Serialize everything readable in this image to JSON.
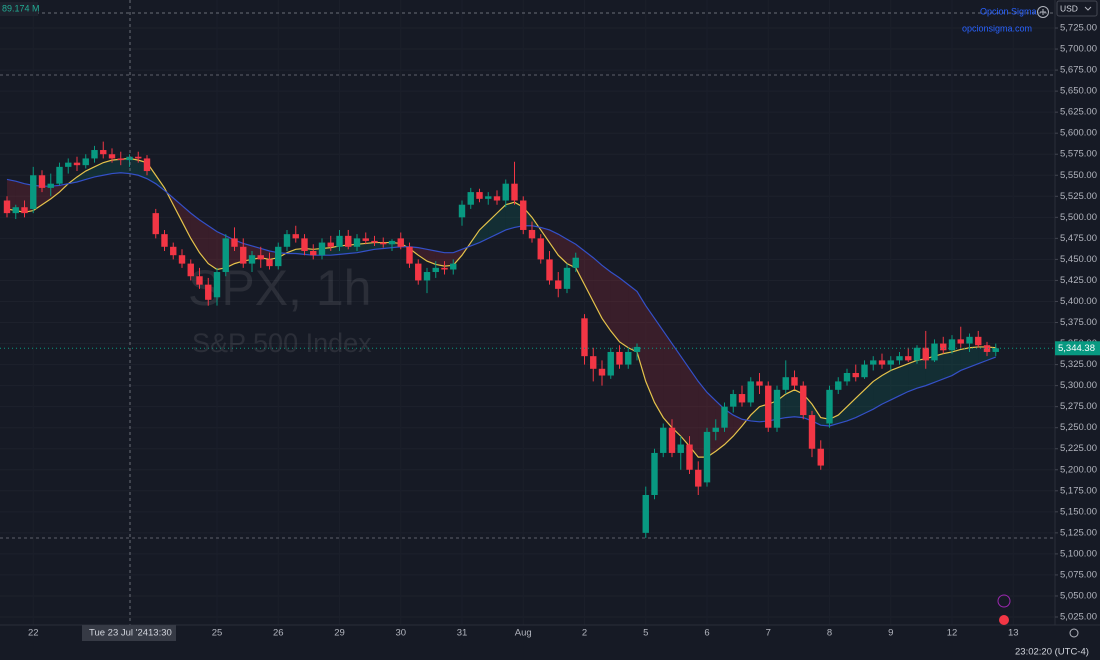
{
  "chart_data": {
    "type": "candlestick",
    "title": "SPX, 1h",
    "subtitle": "S&P 500 Index",
    "currency": "USD",
    "brand": "Opcion Sigma",
    "brand_url": "opcionsigma.com",
    "volume_label": "89.174 M",
    "clock": "23:02:20 (UTC-4)",
    "crosshair": {
      "date": "Tue 23 Jul '24",
      "time": "13:30"
    },
    "last_price_label": "5,344.38",
    "up_color": "#089981",
    "down_color": "#f23645",
    "categories": [
      null,
      null,
      null,
      "22",
      null,
      null,
      null,
      null,
      null,
      null,
      null,
      null,
      null,
      null,
      null,
      null,
      null,
      null,
      null,
      null,
      null,
      null,
      null,
      null,
      "25",
      null,
      null,
      null,
      null,
      null,
      null,
      "26",
      null,
      null,
      null,
      null,
      null,
      null,
      "29",
      null,
      null,
      null,
      null,
      null,
      null,
      "30",
      null,
      null,
      null,
      null,
      null,
      null,
      "31",
      null,
      null,
      null,
      null,
      null,
      null,
      "Aug",
      null,
      null,
      null,
      null,
      null,
      null,
      "2",
      null,
      null,
      null,
      null,
      null,
      null,
      "5",
      null,
      null,
      null,
      null,
      null,
      null,
      "6",
      null,
      null,
      null,
      null,
      null,
      null,
      "7",
      null,
      null,
      null,
      null,
      null,
      null,
      "8",
      null,
      null,
      null,
      null,
      null,
      null,
      "9",
      null,
      null,
      null,
      null,
      null,
      null,
      "12",
      null,
      null,
      null,
      null,
      null,
      null,
      "13"
    ],
    "open": [
      5520,
      5505,
      5512,
      5510,
      5550,
      5535,
      5540,
      5560,
      5565,
      5562,
      5570,
      5580,
      5575,
      5570,
      5568,
      5572,
      5570,
      5505,
      5480,
      5465,
      5455,
      5445,
      5430,
      5420,
      5405,
      5435,
      5475,
      5465,
      5445,
      5455,
      5450,
      5442,
      5465,
      5480,
      5475,
      5460,
      5455,
      5470,
      5465,
      5478,
      5465,
      5475,
      5472,
      5470,
      5468,
      5475,
      5465,
      5445,
      5425,
      5435,
      5440,
      5438,
      5500,
      5515,
      5530,
      5522,
      5525,
      5520,
      5540,
      5520,
      5485,
      5475,
      5450,
      5425,
      5415,
      5440,
      5380,
      5335,
      5320,
      5312,
      5340,
      5325,
      5340,
      5125,
      5170,
      5220,
      5250,
      5220,
      5230,
      5200,
      5185,
      5245,
      5250,
      5275,
      5290,
      5280,
      5305,
      5300,
      5250,
      5295,
      5310,
      5300,
      5265,
      5225,
      5255,
      5295,
      5305,
      5315,
      5310,
      5325,
      5330,
      5325,
      5330,
      5335,
      5330,
      5345,
      5330,
      5350,
      5342,
      5355,
      5350,
      5358,
      5348,
      5340,
      null,
      null
    ],
    "high": [
      5525,
      5515,
      5520,
      5560,
      5556,
      5552,
      5565,
      5570,
      5572,
      5575,
      5585,
      5590,
      5582,
      5578,
      5575,
      5578,
      5574,
      5510,
      5485,
      5470,
      5462,
      5450,
      5440,
      5428,
      5440,
      5480,
      5488,
      5475,
      5460,
      5465,
      5458,
      5470,
      5485,
      5490,
      5480,
      5468,
      5475,
      5478,
      5485,
      5485,
      5480,
      5482,
      5478,
      5476,
      5474,
      5482,
      5470,
      5450,
      5440,
      5448,
      5448,
      5450,
      5520,
      5535,
      5534,
      5530,
      5532,
      5545,
      5566,
      5525,
      5495,
      5480,
      5460,
      5435,
      5445,
      5458,
      5385,
      5345,
      5330,
      5345,
      5348,
      5345,
      5350,
      5180,
      5225,
      5255,
      5260,
      5240,
      5240,
      5210,
      5250,
      5260,
      5280,
      5295,
      5300,
      5310,
      5315,
      5305,
      5300,
      5330,
      5318,
      5305,
      5270,
      5235,
      5300,
      5310,
      5320,
      5325,
      5330,
      5335,
      5338,
      5335,
      5340,
      5345,
      5348,
      5365,
      5355,
      5358,
      5360,
      5370,
      5362,
      5365,
      5352,
      5350,
      null,
      null
    ],
    "low": [
      5500,
      5498,
      5500,
      5505,
      5530,
      5525,
      5538,
      5552,
      5555,
      5558,
      5565,
      5570,
      5565,
      5562,
      5560,
      5565,
      5550,
      5475,
      5460,
      5450,
      5440,
      5425,
      5415,
      5395,
      5395,
      5430,
      5460,
      5440,
      5435,
      5440,
      5438,
      5438,
      5460,
      5470,
      5455,
      5450,
      5450,
      5460,
      5460,
      5462,
      5460,
      5468,
      5466,
      5464,
      5460,
      5462,
      5440,
      5420,
      5410,
      5428,
      5432,
      5432,
      5490,
      5510,
      5518,
      5515,
      5515,
      5512,
      5515,
      5480,
      5470,
      5445,
      5420,
      5405,
      5410,
      5435,
      5325,
      5305,
      5300,
      5308,
      5320,
      5320,
      5330,
      5119,
      5165,
      5215,
      5215,
      5200,
      5195,
      5170,
      5180,
      5235,
      5245,
      5268,
      5275,
      5275,
      5290,
      5245,
      5245,
      5290,
      5295,
      5260,
      5215,
      5200,
      5250,
      5290,
      5300,
      5305,
      5308,
      5318,
      5320,
      5318,
      5325,
      5328,
      5326,
      5320,
      5328,
      5338,
      5338,
      5345,
      5340,
      5345,
      5335,
      5335,
      null,
      null
    ],
    "close": [
      5505,
      5512,
      5505,
      5550,
      5535,
      5540,
      5560,
      5565,
      5562,
      5570,
      5580,
      5575,
      5570,
      5568,
      5572,
      5570,
      5555,
      5480,
      5465,
      5455,
      5445,
      5430,
      5420,
      5402,
      5435,
      5475,
      5465,
      5445,
      5455,
      5450,
      5442,
      5465,
      5480,
      5475,
      5460,
      5455,
      5470,
      5465,
      5478,
      5465,
      5475,
      5472,
      5470,
      5468,
      5472,
      5465,
      5445,
      5425,
      5435,
      5440,
      5438,
      5445,
      5515,
      5530,
      5522,
      5525,
      5520,
      5540,
      5520,
      5485,
      5475,
      5450,
      5425,
      5415,
      5440,
      5452,
      5335,
      5320,
      5312,
      5340,
      5325,
      5340,
      5346,
      5170,
      5220,
      5250,
      5220,
      5230,
      5200,
      5180,
      5245,
      5250,
      5275,
      5290,
      5280,
      5305,
      5300,
      5250,
      5295,
      5310,
      5300,
      5265,
      5225,
      5205,
      5295,
      5305,
      5315,
      5310,
      5325,
      5330,
      5325,
      5330,
      5335,
      5330,
      5345,
      5330,
      5350,
      5342,
      5355,
      5350,
      5358,
      5348,
      5340,
      5344.38,
      null,
      null
    ],
    "overlays": [
      {
        "color": "#e5c34b",
        "values": [
          5510,
          5508,
          5506,
          5508,
          5515,
          5522,
          5530,
          5540,
          5548,
          5555,
          5560,
          5565,
          5568,
          5569,
          5570,
          5568,
          5565,
          5550,
          5535,
          5515,
          5495,
          5475,
          5458,
          5445,
          5438,
          5440,
          5445,
          5448,
          5450,
          5452,
          5450,
          5452,
          5458,
          5462,
          5463,
          5462,
          5463,
          5464,
          5466,
          5467,
          5468,
          5469,
          5470,
          5470,
          5470,
          5469,
          5463,
          5455,
          5448,
          5444,
          5442,
          5443,
          5455,
          5470,
          5485,
          5495,
          5505,
          5515,
          5518,
          5512,
          5500,
          5485,
          5470,
          5455,
          5445,
          5440,
          5420,
          5400,
          5380,
          5365,
          5352,
          5345,
          5340,
          5305,
          5280,
          5262,
          5250,
          5240,
          5228,
          5215,
          5215,
          5222,
          5230,
          5240,
          5252,
          5265,
          5275,
          5278,
          5282,
          5290,
          5295,
          5290,
          5278,
          5262,
          5260,
          5265,
          5275,
          5285,
          5295,
          5305,
          5312,
          5318,
          5322,
          5326,
          5330,
          5332,
          5335,
          5338,
          5340,
          5343,
          5345,
          5346,
          5346,
          5345,
          null,
          null
        ]
      },
      {
        "color": "#3450c8",
        "values": [
          5545,
          5543,
          5540,
          5538,
          5537,
          5537,
          5538,
          5540,
          5542,
          5545,
          5548,
          5550,
          5552,
          5553,
          5552,
          5550,
          5546,
          5540,
          5532,
          5523,
          5514,
          5505,
          5497,
          5490,
          5483,
          5478,
          5473,
          5469,
          5466,
          5463,
          5460,
          5458,
          5457,
          5457,
          5456,
          5455,
          5455,
          5455,
          5456,
          5457,
          5458,
          5460,
          5462,
          5463,
          5464,
          5465,
          5465,
          5464,
          5462,
          5460,
          5458,
          5458,
          5462,
          5466,
          5470,
          5475,
          5480,
          5485,
          5488,
          5490,
          5490,
          5488,
          5485,
          5480,
          5474,
          5468,
          5460,
          5452,
          5443,
          5435,
          5428,
          5420,
          5412,
          5395,
          5380,
          5365,
          5350,
          5335,
          5320,
          5305,
          5292,
          5282,
          5272,
          5265,
          5260,
          5258,
          5257,
          5258,
          5260,
          5262,
          5263,
          5262,
          5258,
          5253,
          5252,
          5255,
          5258,
          5262,
          5267,
          5272,
          5278,
          5283,
          5288,
          5293,
          5297,
          5300,
          5304,
          5308,
          5312,
          5318,
          5322,
          5326,
          5330,
          5334,
          null,
          null
        ]
      }
    ],
    "ylim": [
      5015.5,
      5758.3
    ],
    "yticks": [
      {
        "value": 5025,
        "label": "5,025.00"
      },
      {
        "value": 5050,
        "label": "5,050.00"
      },
      {
        "value": 5075,
        "label": "5,075.00"
      },
      {
        "value": 5100,
        "label": "5,100.00"
      },
      {
        "value": 5125,
        "label": "5,125.00"
      },
      {
        "value": 5150,
        "label": "5,150.00"
      },
      {
        "value": 5175,
        "label": "5,175.00"
      },
      {
        "value": 5200,
        "label": "5,200.00"
      },
      {
        "value": 5225,
        "label": "5,225.00"
      },
      {
        "value": 5250,
        "label": "5,250.00"
      },
      {
        "value": 5275,
        "label": "5,275.00"
      },
      {
        "value": 5300,
        "label": "5,300.00"
      },
      {
        "value": 5325,
        "label": "5,325.00"
      },
      {
        "value": 5350,
        "label": "5,350.00"
      },
      {
        "value": 5375,
        "label": "5,375.00"
      },
      {
        "value": 5400,
        "label": "5,400.00"
      },
      {
        "value": 5425,
        "label": "5,425.00"
      },
      {
        "value": 5450,
        "label": "5,450.00"
      },
      {
        "value": 5475,
        "label": "5,475.00"
      },
      {
        "value": 5500,
        "label": "5,500.00"
      },
      {
        "value": 5525,
        "label": "5,525.00"
      },
      {
        "value": 5550,
        "label": "5,550.00"
      },
      {
        "value": 5575,
        "label": "5,575.00"
      },
      {
        "value": 5600,
        "label": "5,600.00"
      },
      {
        "value": 5625,
        "label": "5,625.00"
      },
      {
        "value": 5650,
        "label": "5,650.00"
      },
      {
        "value": 5675,
        "label": "5,675.00"
      },
      {
        "value": 5700,
        "label": "5,700.00"
      },
      {
        "value": 5725,
        "label": "5,725.00"
      }
    ],
    "grid": true
  }
}
